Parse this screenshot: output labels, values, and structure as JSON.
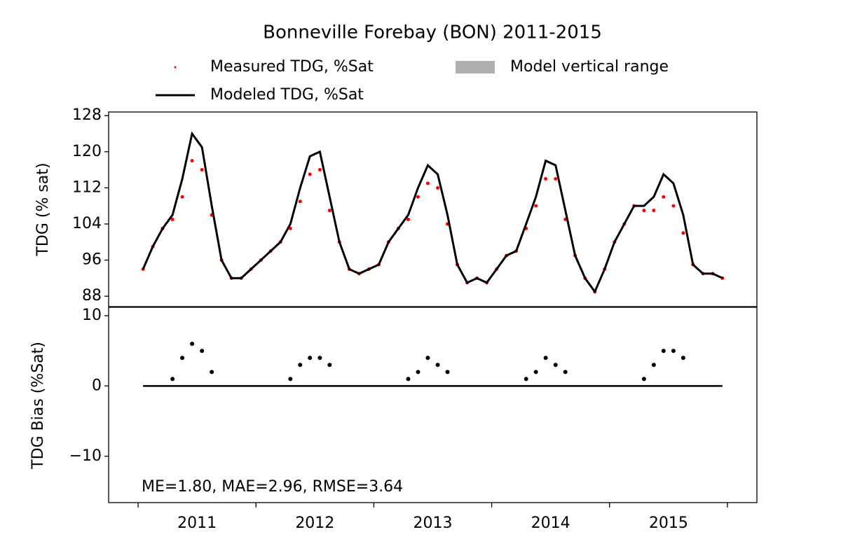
{
  "chart_data": [
    {
      "type": "line",
      "title": "Bonneville Forebay (BON) 2011-2015",
      "ylabel": "TDG (% sat)",
      "x": [
        2011.042,
        2011.125,
        2011.208,
        2011.292,
        2011.375,
        2011.458,
        2011.542,
        2011.625,
        2011.708,
        2011.792,
        2011.875,
        2011.958,
        2012.042,
        2012.125,
        2012.208,
        2012.292,
        2012.375,
        2012.458,
        2012.542,
        2012.625,
        2012.708,
        2012.792,
        2012.875,
        2012.958,
        2013.042,
        2013.125,
        2013.208,
        2013.292,
        2013.375,
        2013.458,
        2013.542,
        2013.625,
        2013.708,
        2013.792,
        2013.875,
        2013.958,
        2014.042,
        2014.125,
        2014.208,
        2014.292,
        2014.375,
        2014.458,
        2014.542,
        2014.625,
        2014.708,
        2014.792,
        2014.875,
        2014.958,
        2015.042,
        2015.125,
        2015.208,
        2015.292,
        2015.375,
        2015.458,
        2015.542,
        2015.625,
        2015.708,
        2015.792,
        2015.875,
        2015.958
      ],
      "series": [
        {
          "name": "Measured TDG, %Sat",
          "color": "#ff0000",
          "marker": "dot",
          "values": [
            94,
            99,
            103,
            105,
            110,
            118,
            116,
            106,
            96,
            92,
            92,
            94,
            96,
            98,
            100,
            103,
            109,
            115,
            116,
            107,
            100,
            94,
            93,
            94,
            95,
            100,
            103,
            105,
            110,
            113,
            112,
            104,
            95,
            91,
            92,
            91,
            94,
            97,
            98,
            103,
            108,
            114,
            114,
            105,
            97,
            92,
            89,
            94,
            100,
            104,
            108,
            107,
            107,
            110,
            108,
            102,
            95,
            93,
            93,
            92
          ]
        },
        {
          "name": "Modeled TDG, %Sat",
          "color": "#000000",
          "marker": "line",
          "values": [
            94,
            99,
            103,
            106,
            114,
            124,
            121,
            108,
            96,
            92,
            92,
            94,
            96,
            98,
            100,
            104,
            112,
            119,
            120,
            110,
            100,
            94,
            93,
            94,
            95,
            100,
            103,
            106,
            112,
            117,
            115,
            106,
            95,
            91,
            92,
            91,
            94,
            97,
            98,
            104,
            110,
            118,
            117,
            107,
            97,
            92,
            89,
            94,
            100,
            104,
            108,
            108,
            110,
            115,
            113,
            106,
            95,
            93,
            93,
            92
          ]
        },
        {
          "name": "Model vertical range",
          "color": "#b0b0b0",
          "marker": "patch"
        }
      ],
      "xlim": [
        2010.75,
        2016.25
      ],
      "ylim": [
        85.7,
        128.8
      ],
      "yticks": [
        88,
        96,
        104,
        112,
        120,
        128
      ]
    },
    {
      "type": "scatter",
      "ylabel": "TDG Bias (%Sat)",
      "annotation": "ME=1.80, MAE=2.96, RMSE=3.64",
      "x": [
        2011.042,
        2011.125,
        2011.208,
        2011.292,
        2011.375,
        2011.458,
        2011.542,
        2011.625,
        2011.708,
        2011.792,
        2011.875,
        2011.958,
        2012.042,
        2012.125,
        2012.208,
        2012.292,
        2012.375,
        2012.458,
        2012.542,
        2012.625,
        2012.708,
        2012.792,
        2012.875,
        2012.958,
        2013.042,
        2013.125,
        2013.208,
        2013.292,
        2013.375,
        2013.458,
        2013.542,
        2013.625,
        2013.708,
        2013.792,
        2013.875,
        2013.958,
        2014.042,
        2014.125,
        2014.208,
        2014.292,
        2014.375,
        2014.458,
        2014.542,
        2014.625,
        2014.708,
        2014.792,
        2014.875,
        2014.958,
        2015.042,
        2015.125,
        2015.208,
        2015.292,
        2015.375,
        2015.458,
        2015.542,
        2015.625,
        2015.708,
        2015.792,
        2015.875,
        2015.958
      ],
      "color": "#000000",
      "values": [
        null,
        null,
        null,
        1,
        4,
        6,
        5,
        2,
        null,
        null,
        null,
        null,
        null,
        null,
        null,
        1,
        3,
        4,
        4,
        3,
        null,
        null,
        null,
        null,
        null,
        null,
        null,
        1,
        2,
        4,
        3,
        2,
        null,
        null,
        null,
        null,
        null,
        null,
        null,
        1,
        2,
        4,
        3,
        2,
        null,
        null,
        null,
        null,
        null,
        null,
        null,
        1,
        3,
        5,
        5,
        4,
        null,
        null,
        null,
        null
      ],
      "reference_line": 0,
      "xlim": [
        2010.75,
        2016.25
      ],
      "ylim": [
        -16.6,
        11.2
      ],
      "yticks": [
        {
          "value": -10,
          "label": "−10"
        },
        0,
        10
      ],
      "xticks": [
        {
          "value": 2011.5,
          "label": "2011"
        },
        {
          "value": 2012.5,
          "label": "2012"
        },
        {
          "value": 2013.5,
          "label": "2013"
        },
        {
          "value": 2014.5,
          "label": "2014"
        },
        {
          "value": 2015.5,
          "label": "2015"
        }
      ],
      "xtick_marks": [
        2011,
        2012,
        2013,
        2014,
        2015,
        2016
      ]
    }
  ]
}
